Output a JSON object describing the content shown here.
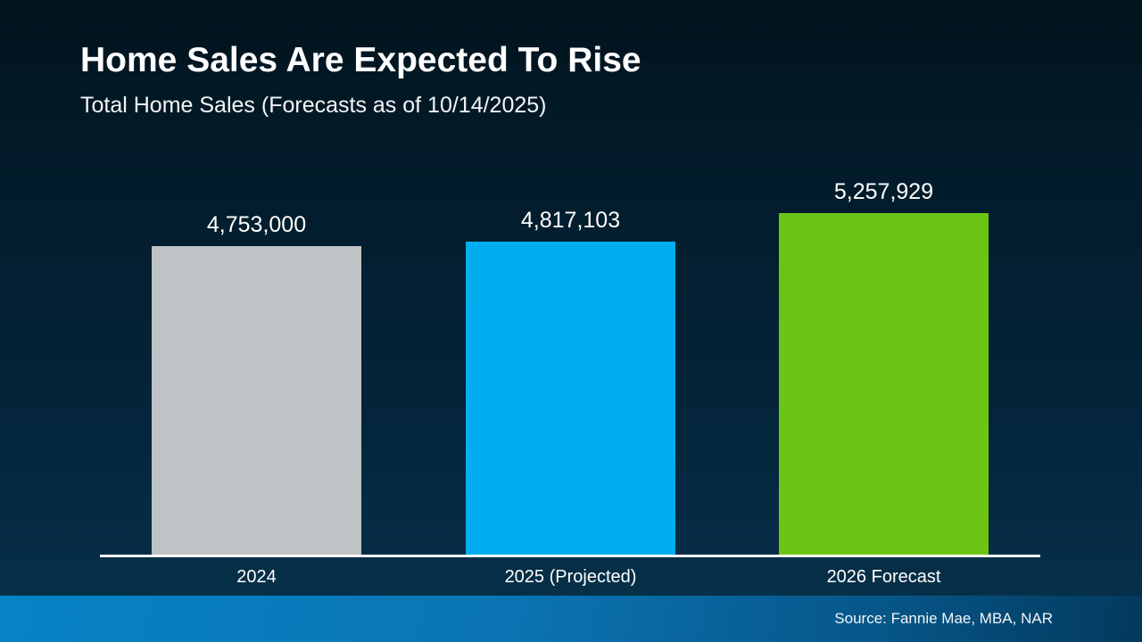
{
  "slide": {
    "title": "Home Sales Are Expected To Rise",
    "subtitle": "Total Home Sales (Forecasts as of 10/14/2025)",
    "source": "Source: Fannie Mae, MBA, NAR"
  },
  "chart_data": {
    "type": "bar",
    "title": "Home Sales Are Expected To Rise",
    "subtitle": "Total Home Sales (Forecasts as of 10/14/2025)",
    "categories": [
      "2024",
      "2025 (Projected)",
      "2026 Forecast"
    ],
    "values": [
      4753000,
      4817103,
      5257929
    ],
    "value_labels": [
      "4,753,000",
      "4,817,103",
      "5,257,929"
    ],
    "bar_colors": [
      "#bec3c5",
      "#00aeef",
      "#6cc515"
    ],
    "ylim": [
      0,
      5257929
    ],
    "grid": false,
    "legend": "none",
    "baseline_color": "#ffffff",
    "annotation_source": "Source: Fannie Mae, MBA, NAR"
  },
  "colors": {
    "background_top": "#02141e",
    "background_bottom": "#063049",
    "footer_gradient_left": "#0683c6",
    "footer_gradient_right": "#03395c",
    "text": "#ffffff"
  }
}
